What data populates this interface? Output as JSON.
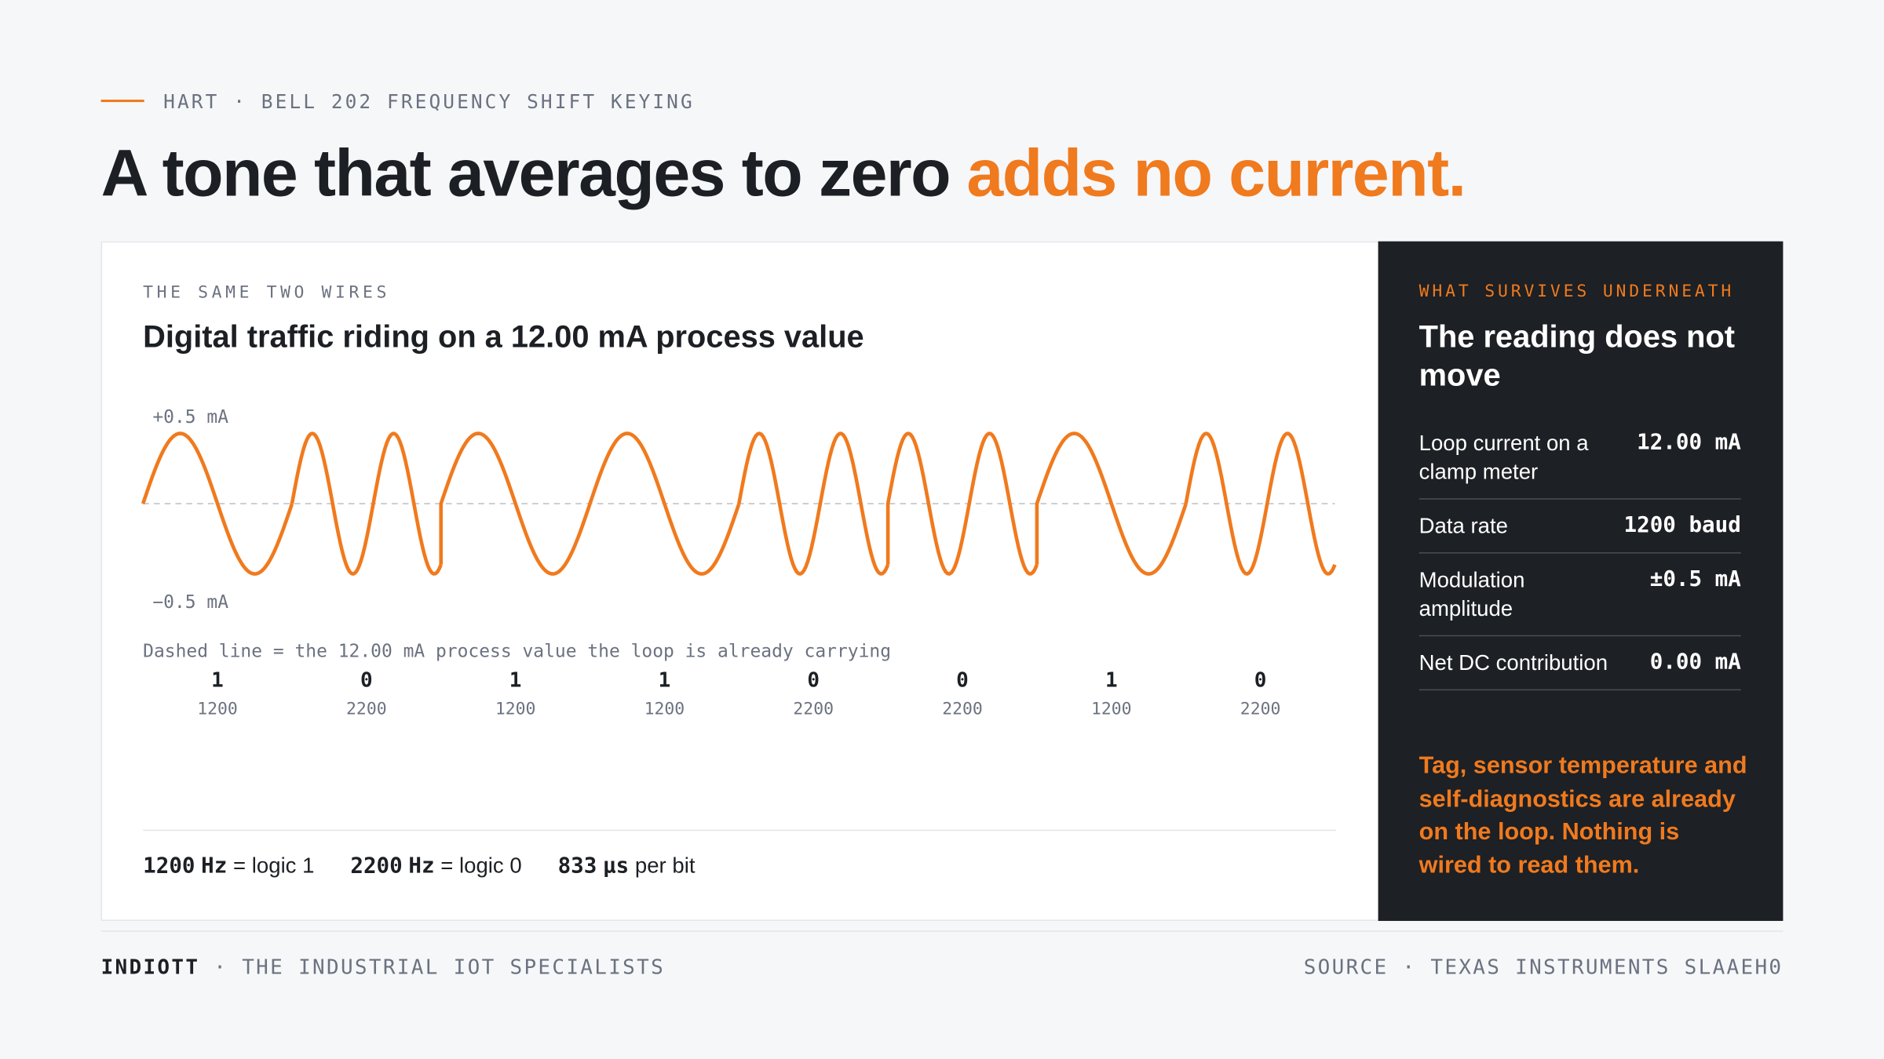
{
  "header": {
    "eyebrow": "HART · BELL 202 FREQUENCY SHIFT KEYING",
    "title": "A tone that averages to zero",
    "title_highlight": "adds no current."
  },
  "panel": {
    "eyebrow": "THE SAME TWO WIRES",
    "title": "Digital traffic riding on a 12.00 mA process value",
    "chart": {
      "type": "line",
      "color": "#f07a1e",
      "ylim": [
        -0.5,
        0.5
      ],
      "yticks": [
        {
          "value": 0.5,
          "label": "+0.5 mA"
        },
        {
          "value": -0.5,
          "label": "−0.5 mA"
        }
      ],
      "caption": "Dashed line = the 12.00 mA process value the loop is already carrying",
      "bits": [
        1,
        0,
        1,
        1,
        0,
        0,
        1,
        0
      ],
      "frequencies": [
        1200,
        2200,
        1200,
        1200,
        2200,
        2200,
        1200,
        2200
      ]
    },
    "legend": [
      {
        "value": 1200,
        "unit": "Hz",
        "text": "= logic 1"
      },
      {
        "value": 2200,
        "unit": "Hz",
        "text": "= logic 0"
      },
      {
        "value": 833,
        "unit": "µs",
        "text": "per bit"
      }
    ]
  },
  "side": {
    "eyebrow": "WHAT SURVIVES UNDERNEATH",
    "title": "The reading does not move",
    "rows": [
      {
        "label": "Loop current on a clamp meter",
        "value": "12.00 mA"
      },
      {
        "label": "Data rate",
        "value": "1200 baud"
      },
      {
        "label": "Modulation amplitude",
        "value": "±0.5 mA"
      },
      {
        "label": "Net DC contribution",
        "value": "0.00 mA"
      }
    ],
    "note": "Tag, sensor temperature and self-diagnostics are already on the loop. Nothing is wired to read them."
  },
  "footer": {
    "brand": "INDIOTT",
    "tagline": "· THE INDUSTRIAL IOT SPECIALISTS",
    "source": "SOURCE · TEXAS INSTRUMENTS SLAAEH0"
  }
}
